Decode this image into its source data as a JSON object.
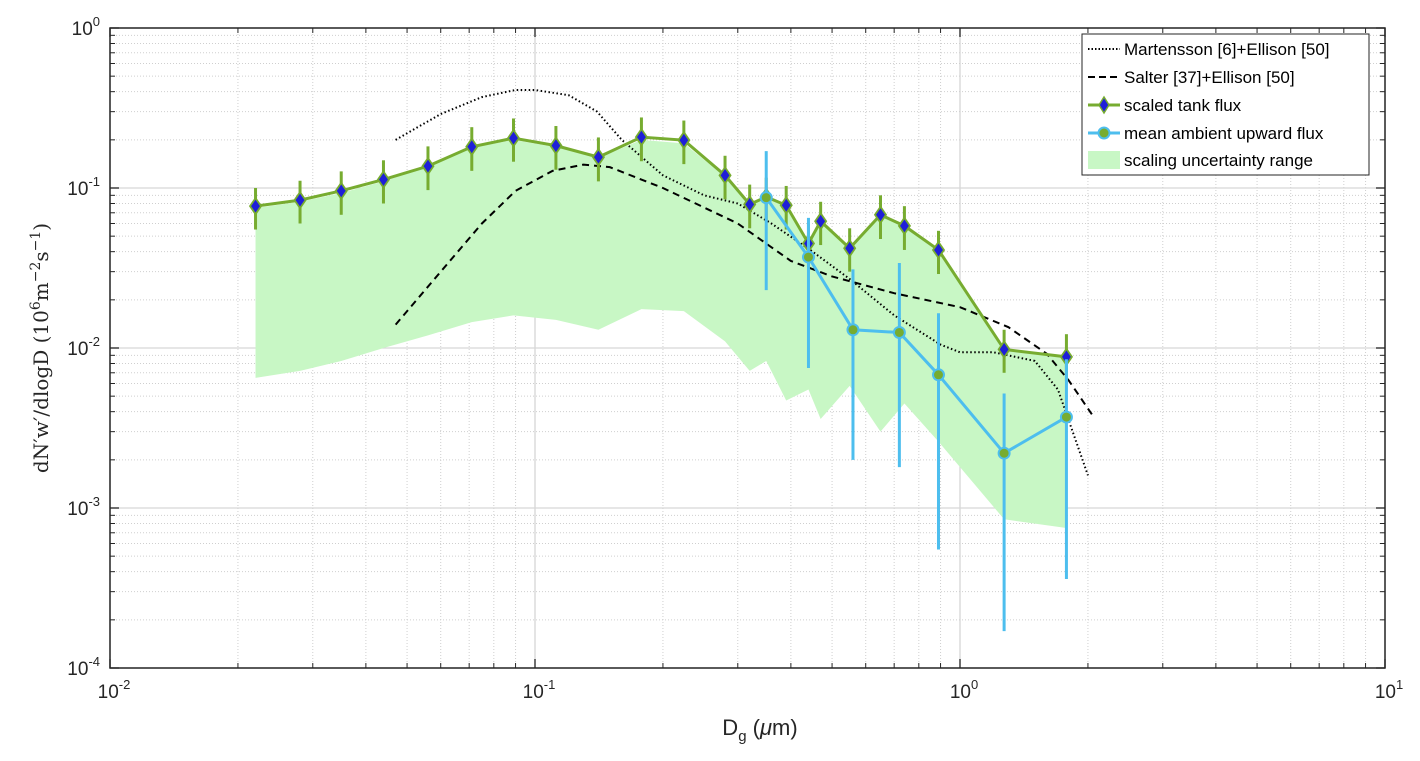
{
  "chart_data": {
    "type": "line",
    "xscale": "log",
    "yscale": "log",
    "xlim": [
      0.01,
      10
    ],
    "ylim": [
      0.0001,
      1
    ],
    "grid": true,
    "minor_grid": true,
    "legend_position": "top-right",
    "xlabel": {
      "main": "D",
      "sub": "g",
      "unit_open": " (",
      "unit_mu": "μ",
      "unit_rest": "m)"
    },
    "ylabel": {
      "left": "dN′w′/dlogD (10",
      "exp1": "6",
      "mid": "m",
      "exp2": "−2",
      "mid2": "s",
      "exp3": "−1",
      "right": ")"
    },
    "x_ticks": [
      {
        "v": 0.01,
        "base": "10",
        "exp": "-2"
      },
      {
        "v": 0.1,
        "base": "10",
        "exp": "-1"
      },
      {
        "v": 1,
        "base": "10",
        "exp": "0"
      },
      {
        "v": 10,
        "base": "10",
        "exp": "1"
      }
    ],
    "y_ticks": [
      {
        "v": 0.0001,
        "base": "10",
        "exp": "-4"
      },
      {
        "v": 0.001,
        "base": "10",
        "exp": "-3"
      },
      {
        "v": 0.01,
        "base": "10",
        "exp": "-2"
      },
      {
        "v": 0.1,
        "base": "10",
        "exp": "-1"
      },
      {
        "v": 1,
        "base": "10",
        "exp": "0"
      }
    ],
    "colors": {
      "tank_line": "#77ac30",
      "tank_marker": "#1f1fd8",
      "ambient_line": "#4dbeee",
      "ambient_marker_fill": "#77ac30",
      "band": "#c8f7c5",
      "grid_major": "#d6d6d6",
      "grid_minor": "#cfcfcf"
    },
    "series": [
      {
        "name": "Martensson [6]+Ellison [50]",
        "kind": "line",
        "style": "dotted",
        "x": [
          0.047,
          0.06,
          0.075,
          0.09,
          0.1,
          0.12,
          0.14,
          0.16,
          0.2,
          0.25,
          0.3,
          0.36,
          0.45,
          0.55,
          0.7,
          0.9,
          1.0,
          1.2,
          1.5,
          1.7,
          2.0
        ],
        "y": [
          0.2,
          0.29,
          0.37,
          0.41,
          0.41,
          0.38,
          0.3,
          0.2,
          0.12,
          0.09,
          0.08,
          0.06,
          0.04,
          0.027,
          0.016,
          0.0105,
          0.0094,
          0.0094,
          0.0083,
          0.0055,
          0.0016
        ]
      },
      {
        "name": "Salter [37]+Ellison [50]",
        "kind": "line",
        "style": "dashed",
        "x": [
          0.047,
          0.06,
          0.075,
          0.09,
          0.11,
          0.13,
          0.15,
          0.2,
          0.3,
          0.4,
          0.5,
          0.7,
          1.0,
          1.3,
          1.6,
          1.8,
          2.05
        ],
        "y": [
          0.014,
          0.03,
          0.06,
          0.096,
          0.128,
          0.14,
          0.135,
          0.1,
          0.06,
          0.035,
          0.028,
          0.022,
          0.018,
          0.0135,
          0.0092,
          0.0063,
          0.0038
        ]
      },
      {
        "name": "scaled tank flux",
        "kind": "markers_errorbars",
        "x": [
          0.022,
          0.028,
          0.035,
          0.044,
          0.056,
          0.071,
          0.089,
          0.112,
          0.141,
          0.178,
          0.224,
          0.28,
          0.32,
          0.35,
          0.39,
          0.44,
          0.47,
          0.55,
          0.65,
          0.74,
          0.89,
          1.27,
          1.78
        ],
        "y": [
          0.077,
          0.084,
          0.096,
          0.113,
          0.137,
          0.181,
          0.205,
          0.184,
          0.156,
          0.208,
          0.199,
          0.12,
          0.079,
          0.088,
          0.078,
          0.045,
          0.062,
          0.042,
          0.068,
          0.058,
          0.041,
          0.0098,
          0.0088
        ],
        "y_low": [
          0.055,
          0.06,
          0.068,
          0.08,
          0.097,
          0.128,
          0.146,
          0.13,
          0.11,
          0.147,
          0.141,
          0.085,
          0.056,
          0.062,
          0.055,
          0.032,
          0.044,
          0.03,
          0.048,
          0.041,
          0.029,
          0.007,
          0.0062
        ],
        "y_high": [
          0.1,
          0.111,
          0.127,
          0.149,
          0.182,
          0.24,
          0.272,
          0.244,
          0.207,
          0.276,
          0.264,
          0.159,
          0.105,
          0.116,
          0.103,
          0.06,
          0.082,
          0.056,
          0.09,
          0.077,
          0.054,
          0.013,
          0.0122
        ]
      },
      {
        "name": "mean ambient upward flux",
        "kind": "markers_errorbars",
        "x": [
          0.35,
          0.44,
          0.56,
          0.72,
          0.89,
          1.27,
          1.78
        ],
        "y": [
          0.087,
          0.037,
          0.013,
          0.0125,
          0.0068,
          0.0022,
          0.0037
        ],
        "y_low": [
          0.023,
          0.0075,
          0.002,
          0.0018,
          0.00055,
          0.00017,
          0.00036
        ],
        "y_high": [
          0.17,
          0.065,
          0.031,
          0.034,
          0.0165,
          0.0052,
          0.0085
        ]
      },
      {
        "name": "scaling uncertainty range",
        "kind": "band",
        "x": [
          0.022,
          0.028,
          0.035,
          0.044,
          0.056,
          0.071,
          0.089,
          0.112,
          0.141,
          0.178,
          0.224,
          0.28,
          0.32,
          0.35,
          0.39,
          0.44,
          0.47,
          0.55,
          0.65,
          0.74,
          0.89,
          1.27,
          1.78
        ],
        "lower": [
          0.0065,
          0.0072,
          0.0083,
          0.01,
          0.012,
          0.0145,
          0.016,
          0.015,
          0.013,
          0.0175,
          0.017,
          0.011,
          0.0072,
          0.0083,
          0.0047,
          0.0055,
          0.0036,
          0.0058,
          0.003,
          0.0045,
          0.0026,
          0.00085,
          0.00075
        ],
        "upper": [
          0.075,
          0.082,
          0.093,
          0.11,
          0.136,
          0.178,
          0.2,
          0.18,
          0.154,
          0.2,
          0.19,
          0.118,
          0.08,
          0.086,
          0.077,
          0.045,
          0.063,
          0.042,
          0.068,
          0.058,
          0.041,
          0.0098,
          0.0088
        ]
      }
    ]
  }
}
